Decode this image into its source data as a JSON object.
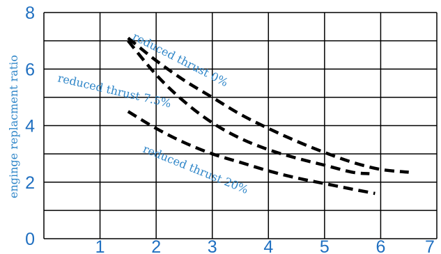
{
  "chart_data": {
    "type": "line",
    "title": "",
    "xlabel": "",
    "ylabel": "enginge replacment ratio",
    "xlim": [
      0,
      7
    ],
    "ylim": [
      0,
      8
    ],
    "x_ticks": [
      1,
      2,
      3,
      4,
      5,
      6,
      7
    ],
    "y_ticks": [
      0,
      2,
      4,
      6,
      8
    ],
    "grid": true,
    "series": [
      {
        "name": "reduced thrust 0%",
        "x": [
          1.5,
          2.0,
          2.5,
          3.0,
          3.5,
          4.0,
          4.5,
          5.0,
          5.5,
          6.0,
          6.5
        ],
        "y": [
          7.1,
          6.3,
          5.6,
          5.0,
          4.4,
          3.9,
          3.45,
          3.05,
          2.7,
          2.45,
          2.35
        ]
      },
      {
        "name": "reduced thrust 7.5%",
        "x": [
          1.5,
          2.0,
          2.5,
          3.0,
          3.5,
          4.0,
          4.5,
          5.0,
          5.5,
          5.8
        ],
        "y": [
          7.0,
          5.8,
          4.85,
          4.1,
          3.55,
          3.15,
          2.85,
          2.6,
          2.35,
          2.3
        ]
      },
      {
        "name": "reduced thrust 20%",
        "x": [
          1.5,
          2.0,
          2.5,
          3.0,
          3.5,
          4.0,
          4.5,
          5.0,
          5.5,
          5.9
        ],
        "y": [
          4.5,
          3.9,
          3.4,
          3.0,
          2.7,
          2.4,
          2.15,
          1.95,
          1.75,
          1.6
        ]
      }
    ],
    "colors": {
      "grid": "#000000",
      "line": "#000000",
      "tick_text": "#1f6fc0",
      "label_text": "#2f86c8"
    }
  }
}
